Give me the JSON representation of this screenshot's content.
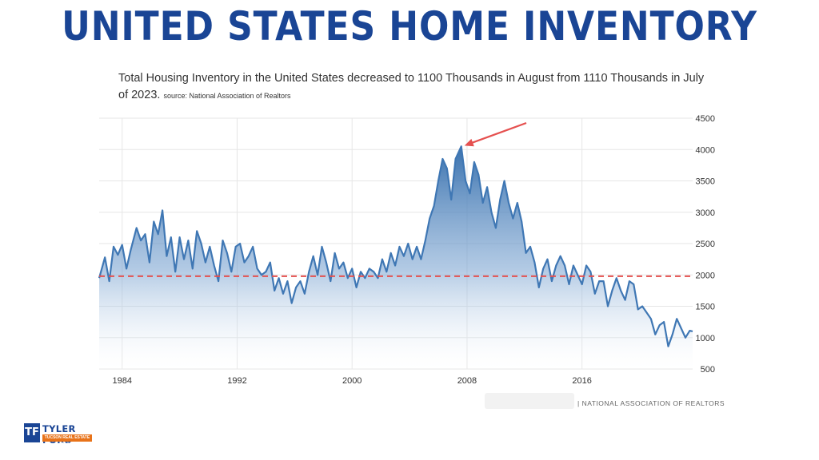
{
  "header": {
    "title": "UNITED STATES HOME INVENTORY"
  },
  "description": {
    "text": "Total Housing Inventory in the United States decreased to 1100 Thousands in August from 1110 Thousands in July of 2023.",
    "source": "source: National Association of Realtors"
  },
  "footer": {
    "source": "| NATIONAL ASSOCIATION OF REALTORS"
  },
  "logo": {
    "name": "TYLER FORD",
    "tagline": "TUCSON REAL ESTATE TEAM",
    "mark": "TF"
  },
  "colors": {
    "title": "#1a4595",
    "line": "#3f77b4",
    "reference": "#e5504f",
    "arrow": "#e5504f"
  },
  "chart_data": {
    "type": "area",
    "title": "",
    "xlabel": "",
    "ylabel": "",
    "x_ticks": [
      "1984",
      "1992",
      "2000",
      "2008",
      "2016"
    ],
    "y_ticks": [
      "500",
      "1000",
      "1500",
      "2000",
      "2500",
      "3000",
      "3500",
      "4000",
      "4500"
    ],
    "xlim": [
      1982.4,
      2023.7
    ],
    "ylim": [
      500,
      4500
    ],
    "grid": true,
    "y_axis_side": "right",
    "reference_line": {
      "y": 1980,
      "style": "dashed"
    },
    "annotation": {
      "type": "arrow",
      "points_to": [
        2007.6,
        4050
      ]
    },
    "series": [
      {
        "values": [
          [
            1982.4,
            1950
          ],
          [
            1982.8,
            2280
          ],
          [
            1983.1,
            1900
          ],
          [
            1983.4,
            2450
          ],
          [
            1983.7,
            2320
          ],
          [
            1984.0,
            2480
          ],
          [
            1984.3,
            2100
          ],
          [
            1984.6,
            2400
          ],
          [
            1985.0,
            2750
          ],
          [
            1985.3,
            2550
          ],
          [
            1985.6,
            2650
          ],
          [
            1985.9,
            2200
          ],
          [
            1986.2,
            2850
          ],
          [
            1986.5,
            2650
          ],
          [
            1986.8,
            3030
          ],
          [
            1987.1,
            2300
          ],
          [
            1987.4,
            2600
          ],
          [
            1987.7,
            2050
          ],
          [
            1988.0,
            2600
          ],
          [
            1988.3,
            2250
          ],
          [
            1988.6,
            2550
          ],
          [
            1988.9,
            2100
          ],
          [
            1989.2,
            2700
          ],
          [
            1989.5,
            2500
          ],
          [
            1989.8,
            2200
          ],
          [
            1990.1,
            2450
          ],
          [
            1990.4,
            2150
          ],
          [
            1990.7,
            1900
          ],
          [
            1991.0,
            2550
          ],
          [
            1991.3,
            2350
          ],
          [
            1991.6,
            2050
          ],
          [
            1991.9,
            2450
          ],
          [
            1992.2,
            2500
          ],
          [
            1992.5,
            2200
          ],
          [
            1992.8,
            2300
          ],
          [
            1993.1,
            2450
          ],
          [
            1993.4,
            2100
          ],
          [
            1993.7,
            2000
          ],
          [
            1994.0,
            2050
          ],
          [
            1994.3,
            2200
          ],
          [
            1994.6,
            1750
          ],
          [
            1994.9,
            1950
          ],
          [
            1995.2,
            1700
          ],
          [
            1995.5,
            1900
          ],
          [
            1995.8,
            1550
          ],
          [
            1996.1,
            1800
          ],
          [
            1996.4,
            1900
          ],
          [
            1996.7,
            1700
          ],
          [
            1997.0,
            2050
          ],
          [
            1997.3,
            2300
          ],
          [
            1997.6,
            2000
          ],
          [
            1997.9,
            2450
          ],
          [
            1998.2,
            2200
          ],
          [
            1998.5,
            1900
          ],
          [
            1998.8,
            2350
          ],
          [
            1999.1,
            2100
          ],
          [
            1999.4,
            2200
          ],
          [
            1999.7,
            1950
          ],
          [
            2000.0,
            2100
          ],
          [
            2000.3,
            1800
          ],
          [
            2000.6,
            2050
          ],
          [
            2000.9,
            1950
          ],
          [
            2001.2,
            2100
          ],
          [
            2001.5,
            2050
          ],
          [
            2001.8,
            1950
          ],
          [
            2002.1,
            2250
          ],
          [
            2002.4,
            2050
          ],
          [
            2002.7,
            2350
          ],
          [
            2003.0,
            2150
          ],
          [
            2003.3,
            2450
          ],
          [
            2003.6,
            2300
          ],
          [
            2003.9,
            2500
          ],
          [
            2004.2,
            2250
          ],
          [
            2004.5,
            2450
          ],
          [
            2004.8,
            2250
          ],
          [
            2005.1,
            2550
          ],
          [
            2005.4,
            2900
          ],
          [
            2005.7,
            3100
          ],
          [
            2006.0,
            3500
          ],
          [
            2006.3,
            3850
          ],
          [
            2006.6,
            3700
          ],
          [
            2006.9,
            3200
          ],
          [
            2007.2,
            3850
          ],
          [
            2007.6,
            4050
          ],
          [
            2007.9,
            3500
          ],
          [
            2008.2,
            3300
          ],
          [
            2008.5,
            3800
          ],
          [
            2008.8,
            3600
          ],
          [
            2009.1,
            3150
          ],
          [
            2009.4,
            3400
          ],
          [
            2009.7,
            3000
          ],
          [
            2010.0,
            2750
          ],
          [
            2010.3,
            3200
          ],
          [
            2010.6,
            3500
          ],
          [
            2010.9,
            3150
          ],
          [
            2011.2,
            2900
          ],
          [
            2011.5,
            3150
          ],
          [
            2011.8,
            2850
          ],
          [
            2012.1,
            2350
          ],
          [
            2012.4,
            2450
          ],
          [
            2012.7,
            2200
          ],
          [
            2013.0,
            1800
          ],
          [
            2013.3,
            2100
          ],
          [
            2013.6,
            2250
          ],
          [
            2013.9,
            1900
          ],
          [
            2014.2,
            2150
          ],
          [
            2014.5,
            2300
          ],
          [
            2014.8,
            2150
          ],
          [
            2015.1,
            1850
          ],
          [
            2015.4,
            2150
          ],
          [
            2015.7,
            2000
          ],
          [
            2016.0,
            1850
          ],
          [
            2016.3,
            2150
          ],
          [
            2016.6,
            2050
          ],
          [
            2016.9,
            1700
          ],
          [
            2017.2,
            1900
          ],
          [
            2017.5,
            1900
          ],
          [
            2017.8,
            1500
          ],
          [
            2018.1,
            1750
          ],
          [
            2018.4,
            1950
          ],
          [
            2018.7,
            1750
          ],
          [
            2019.0,
            1600
          ],
          [
            2019.3,
            1900
          ],
          [
            2019.6,
            1850
          ],
          [
            2019.9,
            1450
          ],
          [
            2020.2,
            1500
          ],
          [
            2020.5,
            1400
          ],
          [
            2020.8,
            1300
          ],
          [
            2021.1,
            1050
          ],
          [
            2021.4,
            1200
          ],
          [
            2021.7,
            1250
          ],
          [
            2022.0,
            860
          ],
          [
            2022.3,
            1050
          ],
          [
            2022.6,
            1300
          ],
          [
            2022.9,
            1150
          ],
          [
            2023.2,
            1000
          ],
          [
            2023.5,
            1110
          ],
          [
            2023.7,
            1100
          ]
        ]
      }
    ]
  }
}
